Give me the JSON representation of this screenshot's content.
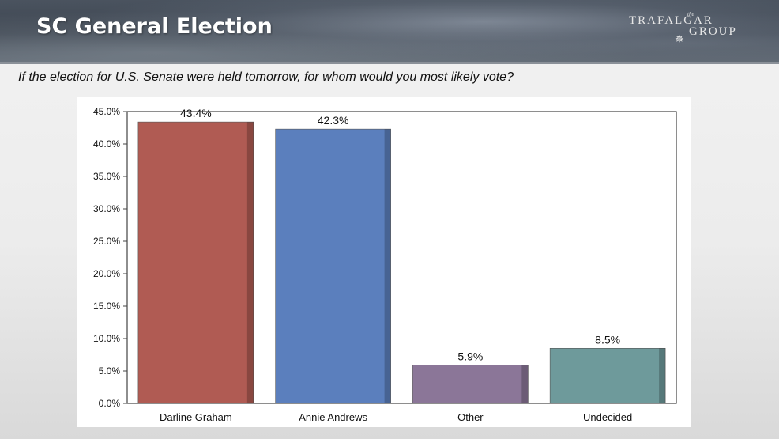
{
  "slide": {
    "title": "SC General Election",
    "question": "If the election for U.S. Senate were held tomorrow, for whom would you most likely vote?"
  },
  "logo": {
    "the": "the",
    "line1": "TRAFALGAR",
    "line2": "GROUP"
  },
  "chart_data": {
    "type": "bar",
    "categories": [
      "Darline Graham",
      "Annie Andrews",
      "Other",
      "Undecided"
    ],
    "values": [
      43.4,
      42.3,
      5.9,
      8.5
    ],
    "value_labels": [
      "43.4%",
      "42.3%",
      "5.9%",
      "8.5%"
    ],
    "colors": [
      "#b05b53",
      "#5b7fbd",
      "#8b7698",
      "#6e9a9b"
    ],
    "title": "",
    "xlabel": "",
    "ylabel": "",
    "ylim": [
      0,
      45
    ],
    "yticks": [
      0,
      5,
      10,
      15,
      20,
      25,
      30,
      35,
      40,
      45
    ],
    "ytick_labels": [
      "0.0%",
      "5.0%",
      "10.0%",
      "15.0%",
      "20.0%",
      "25.0%",
      "30.0%",
      "35.0%",
      "40.0%",
      "45.0%"
    ],
    "grid": false,
    "legend": "none"
  }
}
